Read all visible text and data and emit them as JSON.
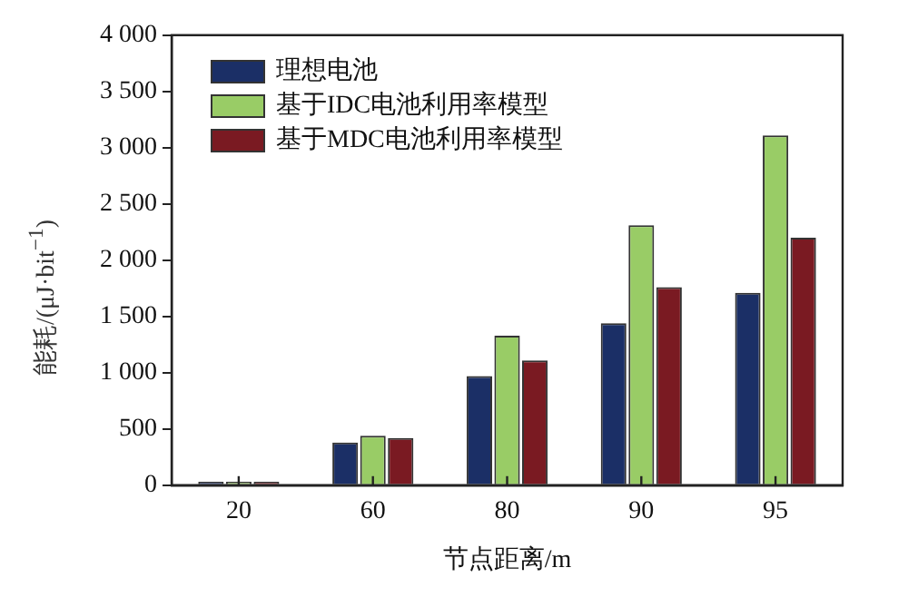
{
  "chart_data": {
    "type": "bar",
    "xlabel": "节点距离/m",
    "ylabel": "能耗/(μJ·bit$^{−1}$)",
    "categories": [
      "20",
      "60",
      "80",
      "90",
      "95"
    ],
    "series": [
      {
        "name": "理想电池",
        "color": "#1b2f66",
        "values": [
          30,
          380,
          970,
          1440,
          1710
        ]
      },
      {
        "name": "基于IDC电池利用率模型",
        "color": "#99cc66",
        "values": [
          30,
          440,
          1330,
          2310,
          3110
        ]
      },
      {
        "name": "基于MDC电池利用率模型",
        "color": "#7a1a22",
        "values": [
          30,
          420,
          1110,
          1760,
          2200
        ]
      }
    ],
    "ylim": [
      0,
      4000
    ],
    "yticks": [
      0,
      500,
      {
        "value": 1000,
        "label": "1 000"
      },
      {
        "value": 1500,
        "label": "1 500"
      },
      {
        "value": 2000,
        "label": "2 000"
      },
      {
        "value": 2500,
        "label": "2 500"
      },
      {
        "value": 3000,
        "label": "3 000"
      },
      {
        "value": 3500,
        "label": "3 500"
      },
      {
        "value": 4000,
        "label": "4 000"
      }
    ],
    "grid": false,
    "legend": "top left"
  }
}
